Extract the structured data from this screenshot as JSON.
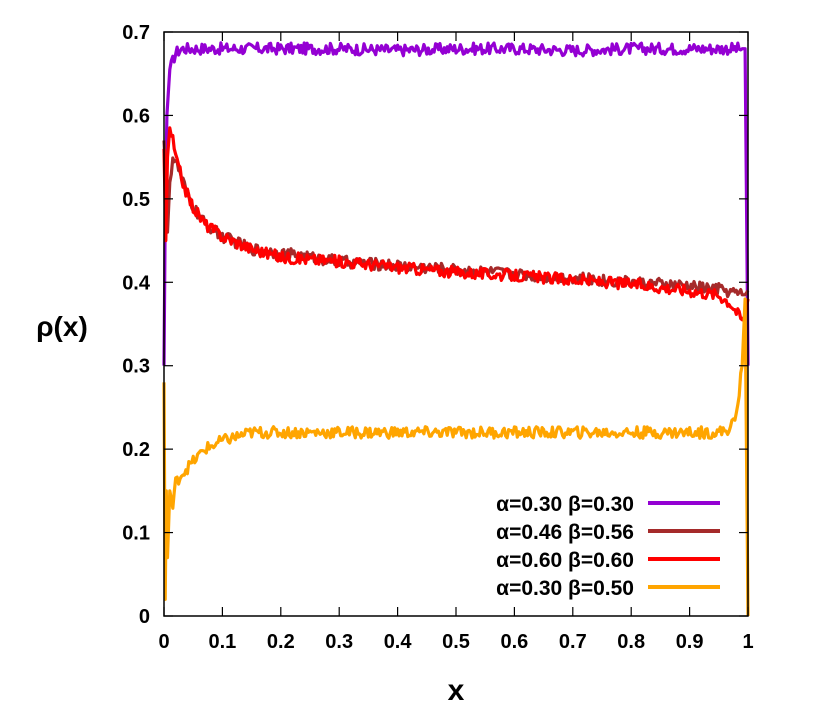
{
  "chart_data": {
    "type": "line",
    "xlabel": "x",
    "ylabel": "ρ(x)",
    "xlim": [
      0,
      1
    ],
    "ylim": [
      0,
      0.7
    ],
    "xticks": [
      "0",
      "0.1",
      "0.2",
      "0.3",
      "0.4",
      "0.5",
      "0.6",
      "0.7",
      "0.8",
      "0.9",
      "1"
    ],
    "yticks": [
      "0",
      "0.1",
      "0.2",
      "0.3",
      "0.4",
      "0.5",
      "0.6",
      "0.7"
    ],
    "grid": false,
    "legend_position": "bottom-right",
    "series": [
      {
        "name": "α=0.30 β=0.30",
        "color": "#9400d3",
        "x": [
          0.0,
          0.002,
          0.005,
          0.01,
          0.02,
          0.03,
          0.05,
          0.1,
          0.2,
          0.3,
          0.4,
          0.5,
          0.6,
          0.7,
          0.8,
          0.9,
          0.95,
          0.99,
          0.995,
          1.0
        ],
        "y": [
          0.3,
          0.48,
          0.6,
          0.655,
          0.675,
          0.68,
          0.68,
          0.68,
          0.68,
          0.68,
          0.678,
          0.68,
          0.68,
          0.678,
          0.68,
          0.68,
          0.68,
          0.68,
          0.68,
          0.3
        ]
      },
      {
        "name": "α=0.46 β=0.56",
        "color": "#a52a2a",
        "x": [
          0.0,
          0.003,
          0.006,
          0.01,
          0.015,
          0.02,
          0.03,
          0.04,
          0.05,
          0.07,
          0.1,
          0.15,
          0.2,
          0.3,
          0.4,
          0.5,
          0.6,
          0.7,
          0.8,
          0.9,
          0.95,
          0.99,
          0.995,
          1.0
        ],
        "y": [
          0.57,
          0.53,
          0.46,
          0.52,
          0.55,
          0.545,
          0.525,
          0.505,
          0.49,
          0.47,
          0.455,
          0.44,
          0.435,
          0.425,
          0.42,
          0.415,
          0.41,
          0.405,
          0.4,
          0.395,
          0.392,
          0.385,
          0.385,
          0.39
        ]
      },
      {
        "name": "α=0.60 β=0.60",
        "color": "#ff0000",
        "x": [
          0.0,
          0.003,
          0.006,
          0.01,
          0.015,
          0.02,
          0.03,
          0.04,
          0.05,
          0.07,
          0.1,
          0.15,
          0.2,
          0.3,
          0.4,
          0.5,
          0.6,
          0.7,
          0.8,
          0.9,
          0.95,
          0.97,
          0.99,
          0.995,
          1.0
        ],
        "y": [
          0.56,
          0.45,
          0.55,
          0.585,
          0.57,
          0.55,
          0.525,
          0.505,
          0.49,
          0.47,
          0.455,
          0.44,
          0.43,
          0.425,
          0.418,
          0.412,
          0.408,
          0.403,
          0.398,
          0.39,
          0.385,
          0.375,
          0.355,
          0.36,
          0.38
        ]
      },
      {
        "name": "α=0.30 β=0.50",
        "color": "#ffa500",
        "x": [
          0.0,
          0.002,
          0.004,
          0.006,
          0.01,
          0.015,
          0.02,
          0.03,
          0.05,
          0.07,
          0.1,
          0.15,
          0.2,
          0.3,
          0.4,
          0.5,
          0.6,
          0.7,
          0.8,
          0.9,
          0.95,
          0.97,
          0.98,
          0.99,
          0.995,
          1.0
        ],
        "y": [
          0.28,
          0.02,
          0.15,
          0.07,
          0.15,
          0.13,
          0.16,
          0.17,
          0.185,
          0.2,
          0.21,
          0.22,
          0.22,
          0.22,
          0.22,
          0.22,
          0.22,
          0.22,
          0.22,
          0.22,
          0.22,
          0.225,
          0.24,
          0.3,
          0.38,
          0.0
        ]
      }
    ]
  }
}
